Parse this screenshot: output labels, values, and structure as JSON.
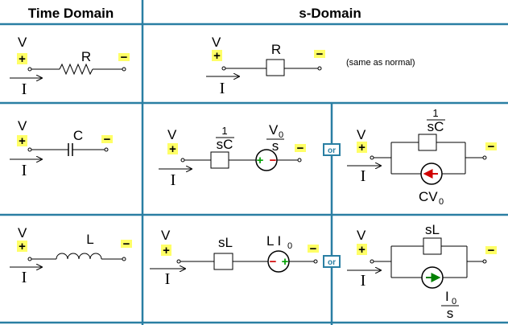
{
  "headers": {
    "time": "Time Domain",
    "s": "s-Domain"
  },
  "symbols": {
    "V": "V",
    "I": "I",
    "plus": "+",
    "minus": "−",
    "R": "R",
    "C": "C",
    "L": "L",
    "sC": "sC",
    "one": "1",
    "sL": "sL",
    "s": "s",
    "V0": "V",
    "V0_sub": "0",
    "CV0": "CV",
    "CV0_sub": "0",
    "LI0_L": "L I",
    "LI0_sub": "0",
    "I0": "I",
    "I0_sub": "0"
  },
  "note": "(same as normal)",
  "or_label": "or",
  "colors": {
    "grid": "#2a7fa3",
    "highlight": "#ffff66",
    "source_border": "#000000",
    "plus_green": "#00a000",
    "minus_red": "#d00000",
    "arrow_red": "#d00000",
    "arrow_green": "#008000",
    "box_fill": "#ffffff"
  }
}
